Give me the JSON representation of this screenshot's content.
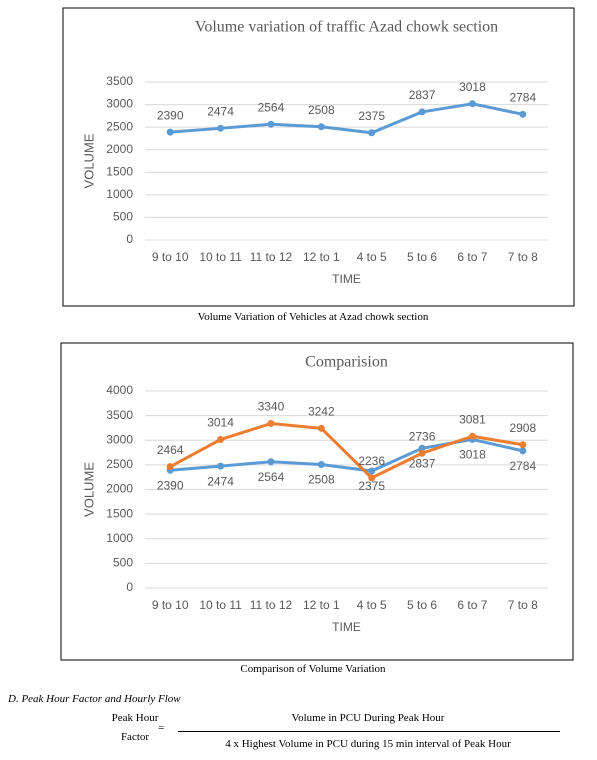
{
  "chart_data": [
    {
      "type": "line",
      "title": "Volume variation of traffic Azad chowk section",
      "categories": [
        "9 to 10",
        "10 to 11",
        "11 to 12",
        "12 to 1",
        "4 to 5",
        "5 to 6",
        "6 to 7",
        "7 to 8"
      ],
      "series": [
        {
          "color": "#5b9bd5",
          "values": [
            2390,
            2474,
            2564,
            2508,
            2375,
            2837,
            3018,
            2784
          ]
        }
      ],
      "ylim": [
        0,
        3500
      ],
      "yticks": [
        0,
        500,
        1000,
        1500,
        2000,
        2500,
        3000,
        3500
      ],
      "grid": true,
      "xlabel": "TIME",
      "ylabel": "VOLUME"
    },
    {
      "type": "line",
      "title": "Comparision",
      "categories": [
        "9 to 10",
        "10 to 11",
        "11 to 12",
        "12 to 1",
        "4 to 5",
        "5 to 6",
        "6 to 7",
        "7 to 8"
      ],
      "series": [
        {
          "color": "#5b9bd5",
          "values": [
            2390,
            2474,
            2564,
            2508,
            2375,
            2837,
            3018,
            2784
          ]
        },
        {
          "color": "#ed7d31",
          "values": [
            2464,
            3014,
            3340,
            3242,
            2236,
            2736,
            3081,
            2908
          ]
        }
      ],
      "ylim": [
        0,
        4000
      ],
      "yticks": [
        0,
        500,
        1000,
        1500,
        2000,
        2500,
        3000,
        3500,
        4000
      ],
      "grid": true,
      "xlabel": "TIME",
      "ylabel": "VOLUME"
    }
  ],
  "captions": [
    "Volume Variation of Vehicles at Azad chowk section",
    "Comparison of Volume Variation"
  ],
  "section": "D.   Peak Hour Factor and Hourly Flow",
  "formula": {
    "lhs": [
      "Peak Hour",
      "Factor"
    ],
    "equals": "=",
    "numerator": "Volume in PCU During Peak Hour",
    "denominator": "4 x Highest Volume in PCU during 15 min interval of Peak Hour"
  }
}
